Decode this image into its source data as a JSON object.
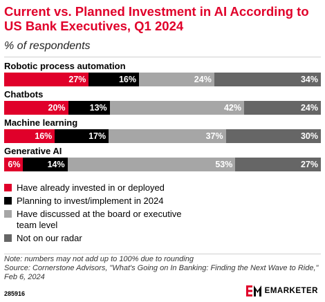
{
  "colors": {
    "accent": "#e0002a",
    "series": [
      "#e0002a",
      "#000000",
      "#a6a6a6",
      "#666666"
    ]
  },
  "chart_data": {
    "type": "bar",
    "orientation": "horizontal",
    "stacked": true,
    "title": "Current vs. Planned Investment in AI According to US Bank Executives, Q1 2024",
    "subtitle": "% of respondents",
    "categories": [
      "Robotic process automation",
      "Chatbots",
      "Machine learning",
      "Generative AI"
    ],
    "series": [
      {
        "name": "Have already invested in or deployed",
        "color": "#e0002a",
        "values": [
          27,
          20,
          16,
          6
        ]
      },
      {
        "name": "Planning to invest/implement in 2024",
        "color": "#000000",
        "values": [
          16,
          13,
          17,
          14
        ]
      },
      {
        "name": "Have discussed at the board or executive team level",
        "color": "#a6a6a6",
        "values": [
          24,
          42,
          37,
          53
        ]
      },
      {
        "name": "Not on our radar",
        "color": "#666666",
        "values": [
          34,
          24,
          30,
          27
        ]
      }
    ],
    "value_suffix": "%",
    "legend_position": "bottom-left"
  },
  "legend": [
    {
      "label": "Have already invested in or deployed"
    },
    {
      "label": "Planning to invest/implement in 2024"
    },
    {
      "label": "Have discussed at the board or executive team level"
    },
    {
      "label": "Not on our radar"
    }
  ],
  "footer": {
    "note": "Note: numbers may not add up to 100% due to rounding",
    "source": "Source: Cornerstone Advisors, \"What's Going on In Banking: Finding the Next Wave to Ride,\" Feb 6, 2024",
    "id": "285916",
    "brand": "EMARKETER"
  }
}
